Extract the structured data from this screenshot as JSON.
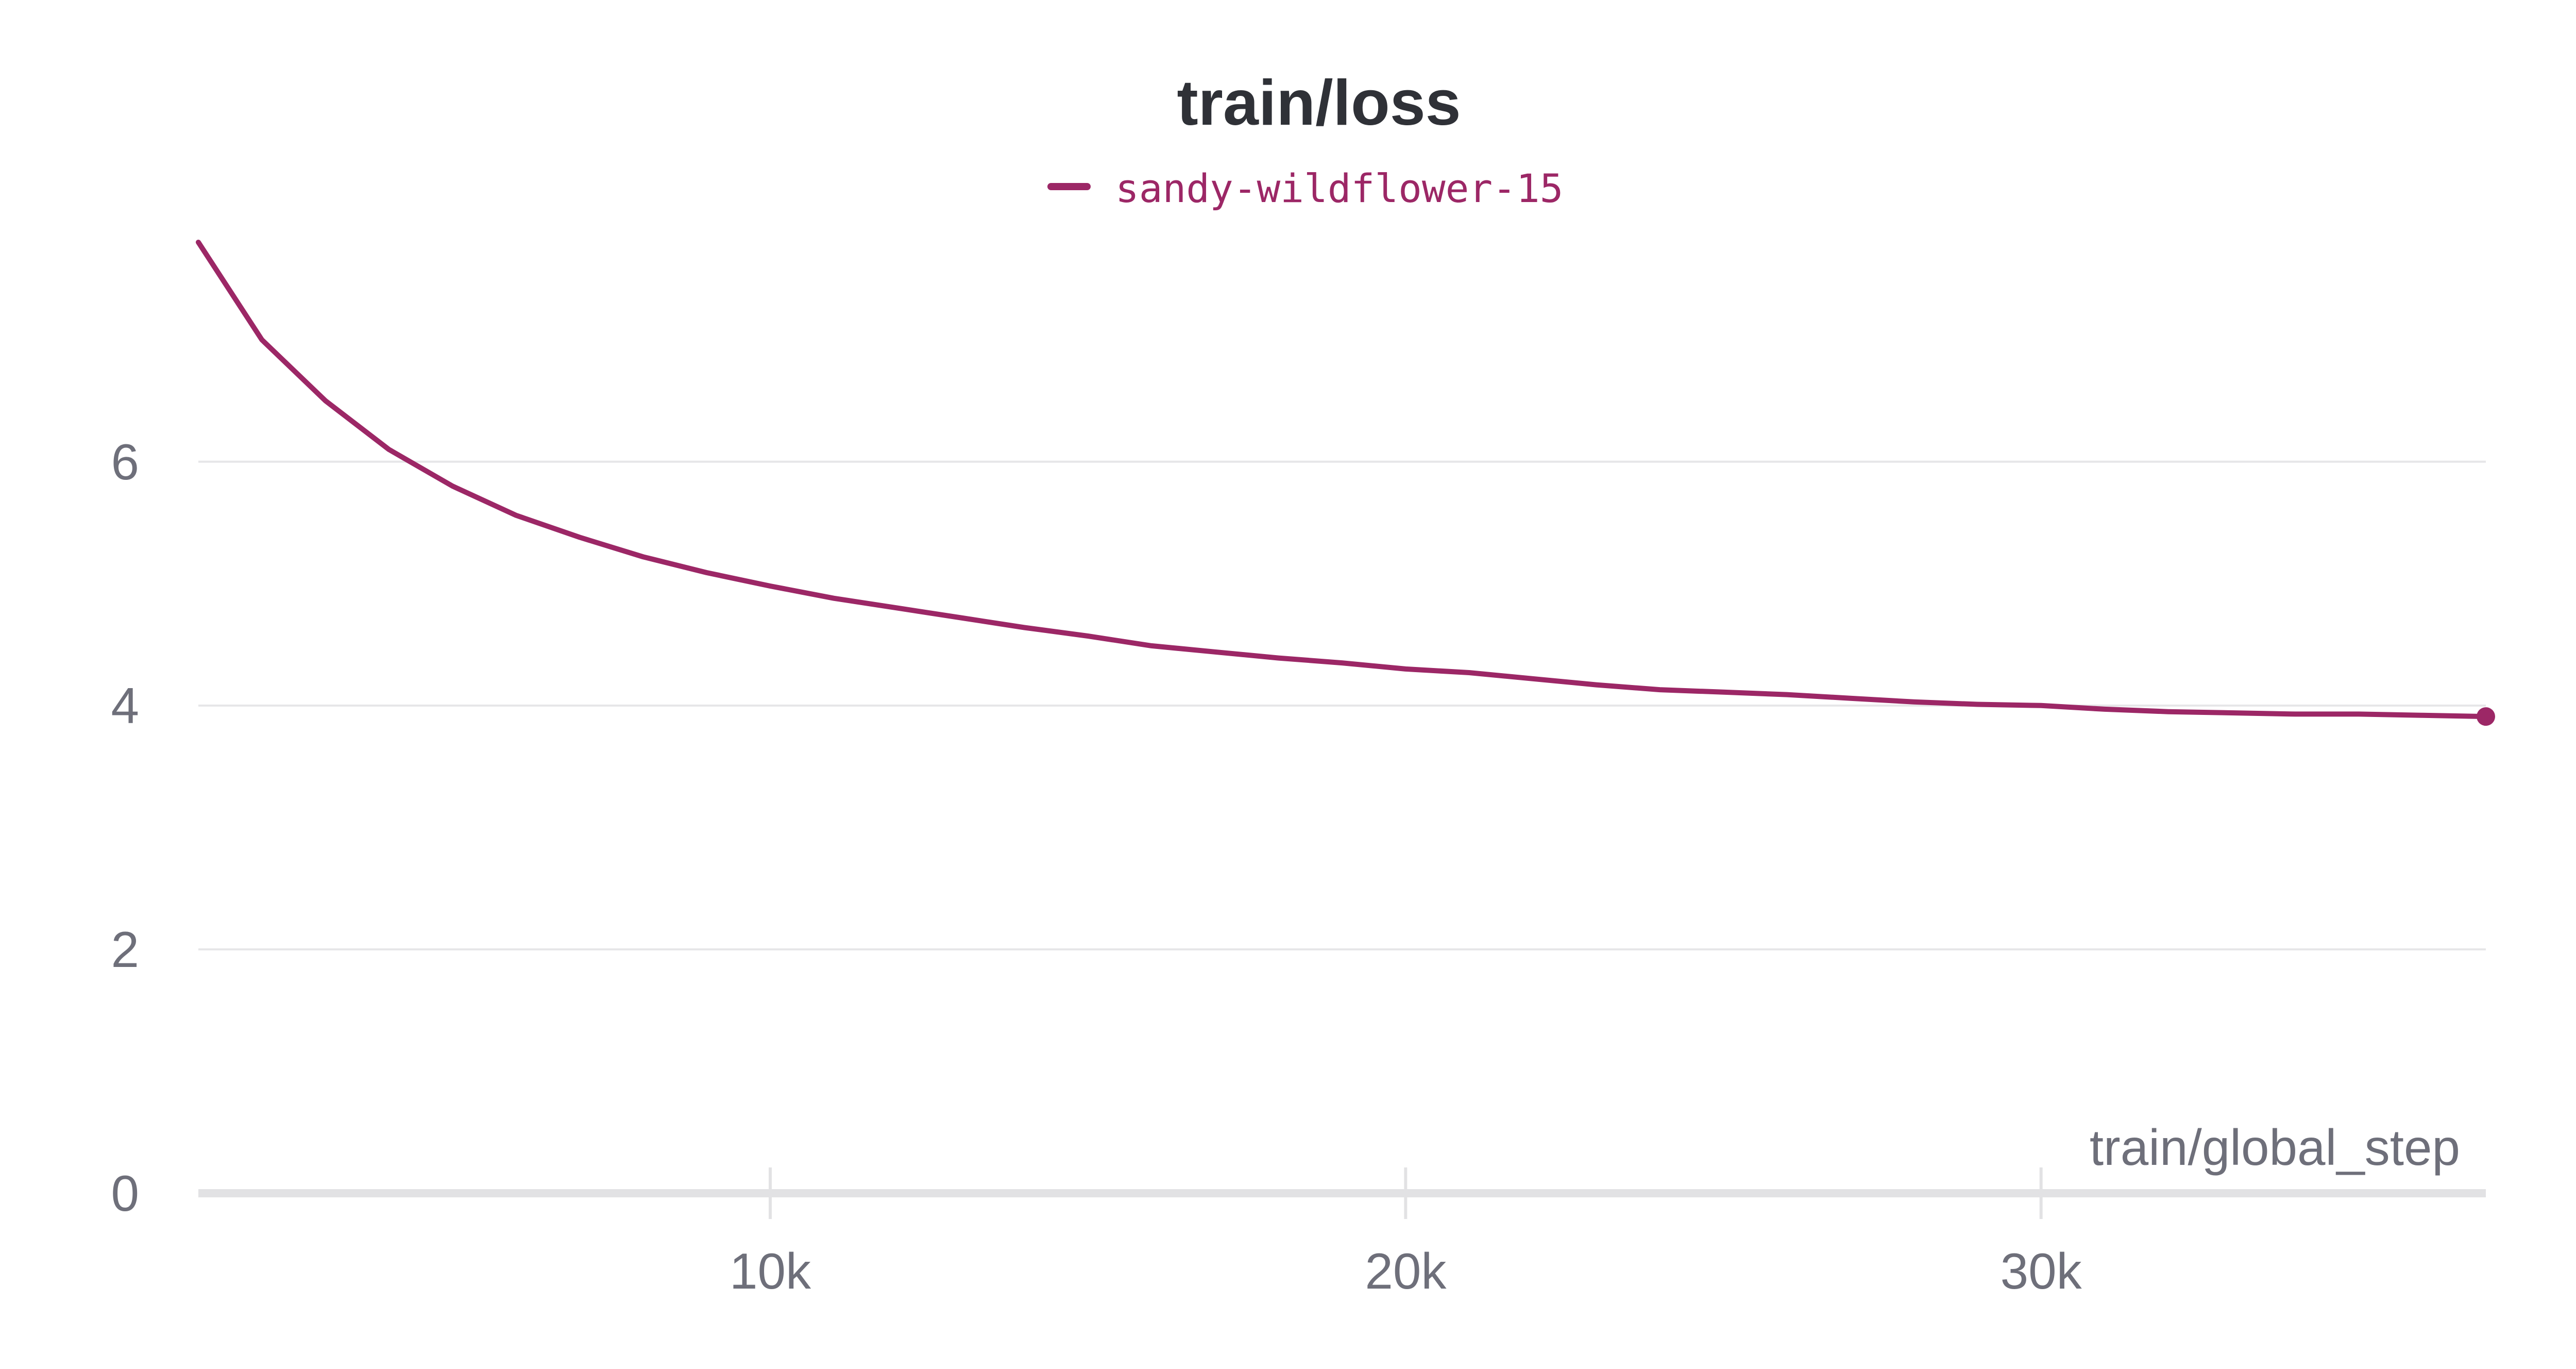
{
  "chart_data": {
    "type": "line",
    "title": "train/loss",
    "xlabel": "train/global_step",
    "ylabel": "",
    "legend": {
      "placement": "top-center",
      "entries": [
        "sandy-wildflower-15"
      ]
    },
    "grid": true,
    "xlim": [
      1000,
      37000
    ],
    "ylim": [
      0,
      7.8
    ],
    "x_ticks": [
      10000,
      20000,
      30000
    ],
    "x_tick_labels": [
      "10k",
      "20k",
      "30k"
    ],
    "y_ticks": [
      0,
      2,
      4,
      6
    ],
    "y_tick_labels": [
      "0",
      "2",
      "4",
      "6"
    ],
    "colors": {
      "series": "#9c2766",
      "title": "#2f3137",
      "ticks": "#6e6f7a",
      "grid": "#e6e6e8",
      "axis": "#e2e2e4"
    },
    "series": [
      {
        "name": "sandy-wildflower-15",
        "x": [
          1000,
          2000,
          3000,
          4000,
          5000,
          6000,
          7000,
          8000,
          9000,
          10000,
          11000,
          12000,
          13000,
          14000,
          15000,
          16000,
          17000,
          18000,
          19000,
          20000,
          21000,
          22000,
          23000,
          24000,
          25000,
          26000,
          27000,
          28000,
          29000,
          30000,
          31000,
          32000,
          33000,
          34000,
          35000,
          36000,
          37000
        ],
        "y": [
          7.8,
          7.0,
          6.5,
          6.1,
          5.8,
          5.56,
          5.38,
          5.22,
          5.09,
          4.98,
          4.88,
          4.8,
          4.72,
          4.64,
          4.57,
          4.49,
          4.44,
          4.39,
          4.35,
          4.3,
          4.27,
          4.22,
          4.17,
          4.13,
          4.11,
          4.09,
          4.06,
          4.03,
          4.01,
          4.0,
          3.97,
          3.95,
          3.94,
          3.93,
          3.93,
          3.92,
          3.91
        ]
      }
    ]
  }
}
